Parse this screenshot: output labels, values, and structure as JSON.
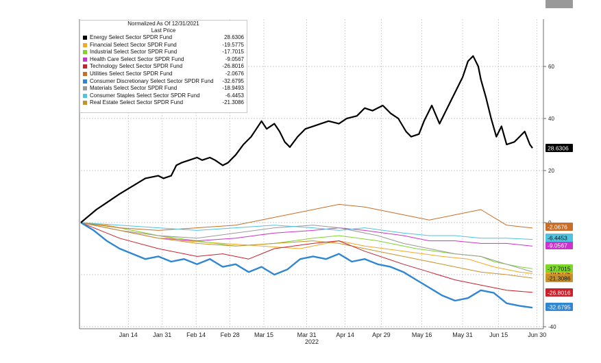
{
  "legend": {
    "title": "Normalized As Of 12/31/2021",
    "subtitle": "Last Price"
  },
  "chart_data": {
    "type": "line",
    "title": "Normalized As Of 12/31/2021",
    "xlabel": "2022",
    "ylabel": "",
    "x_ticks": [
      "Jan 14",
      "Jan 31",
      "Feb 14",
      "Feb 28",
      "Mar 15",
      "Mar 31",
      "Apr 14",
      "Apr 29",
      "May 16",
      "May 31",
      "Jun 15",
      "Jun 30"
    ],
    "y_ticks": [
      "60",
      "40",
      "20",
      "0",
      "-40"
    ],
    "ylim": [
      -40,
      78
    ],
    "grid": true,
    "legend_position": "top-left",
    "series": [
      {
        "name": "Energy Select Sector SPDR Fund",
        "last": "28.6306",
        "color": "#000000",
        "points": [
          [
            0,
            0
          ],
          [
            6,
            5
          ],
          [
            9,
            7
          ],
          [
            12,
            9
          ],
          [
            15,
            11
          ],
          [
            20,
            14
          ],
          [
            25,
            17
          ],
          [
            30,
            18
          ],
          [
            32,
            17
          ],
          [
            35,
            18
          ],
          [
            37,
            22
          ],
          [
            39,
            23
          ],
          [
            42,
            24
          ],
          [
            45,
            25
          ],
          [
            47,
            24
          ],
          [
            50,
            25
          ],
          [
            52,
            24
          ],
          [
            55,
            22
          ],
          [
            57,
            23
          ],
          [
            60,
            26
          ],
          [
            63,
            30
          ],
          [
            66,
            33
          ],
          [
            68,
            36
          ],
          [
            70,
            39
          ],
          [
            72,
            36
          ],
          [
            75,
            38
          ],
          [
            77,
            35
          ],
          [
            79,
            31
          ],
          [
            81,
            29
          ],
          [
            84,
            33
          ],
          [
            87,
            36
          ],
          [
            90,
            37
          ],
          [
            93,
            38
          ],
          [
            96,
            39
          ],
          [
            100,
            38
          ],
          [
            103,
            40
          ],
          [
            107,
            41
          ],
          [
            110,
            44
          ],
          [
            113,
            43
          ],
          [
            117,
            45
          ],
          [
            120,
            42
          ],
          [
            123,
            40
          ],
          [
            126,
            35
          ],
          [
            128,
            33
          ],
          [
            131,
            34
          ],
          [
            133,
            39
          ],
          [
            136,
            45
          ],
          [
            139,
            38
          ],
          [
            142,
            44
          ],
          [
            145,
            50
          ],
          [
            148,
            56
          ],
          [
            150,
            62
          ],
          [
            152,
            64
          ],
          [
            154,
            60
          ],
          [
            155,
            55
          ],
          [
            157,
            48
          ],
          [
            159,
            40
          ],
          [
            161,
            33
          ],
          [
            163,
            37
          ],
          [
            165,
            30
          ],
          [
            168,
            31
          ],
          [
            170,
            33
          ],
          [
            172,
            35
          ],
          [
            174,
            30
          ],
          [
            175,
            28.63
          ]
        ]
      },
      {
        "name": "Financial Select Sector SPDR Fund",
        "last": "-19.5775",
        "color": "#f5a623",
        "points": [
          [
            0,
            0
          ],
          [
            10,
            -1
          ],
          [
            25,
            -4
          ],
          [
            40,
            -7
          ],
          [
            55,
            -8
          ],
          [
            70,
            -9
          ],
          [
            85,
            -10
          ],
          [
            100,
            -7
          ],
          [
            110,
            -9
          ],
          [
            125,
            -11
          ],
          [
            140,
            -13
          ],
          [
            150,
            -14
          ],
          [
            160,
            -17
          ],
          [
            170,
            -19
          ],
          [
            175,
            -19.58
          ]
        ]
      },
      {
        "name": "Industrial Select Sector SPDR Fund",
        "last": "-17.7015",
        "color": "#7fd62a",
        "points": [
          [
            0,
            0
          ],
          [
            15,
            -2
          ],
          [
            30,
            -5
          ],
          [
            45,
            -7
          ],
          [
            60,
            -9
          ],
          [
            75,
            -8
          ],
          [
            90,
            -6
          ],
          [
            100,
            -5
          ],
          [
            115,
            -7
          ],
          [
            130,
            -10
          ],
          [
            145,
            -12
          ],
          [
            155,
            -13
          ],
          [
            160,
            -15
          ],
          [
            170,
            -17
          ],
          [
            175,
            -17.7
          ]
        ]
      },
      {
        "name": "Health Care Select Sector SPDR Fund",
        "last": "-9.0567",
        "color": "#cc33cc",
        "points": [
          [
            0,
            0
          ],
          [
            15,
            -3
          ],
          [
            30,
            -6
          ],
          [
            45,
            -7
          ],
          [
            60,
            -6
          ],
          [
            75,
            -4
          ],
          [
            90,
            -3
          ],
          [
            100,
            -2
          ],
          [
            110,
            -3
          ],
          [
            125,
            -5
          ],
          [
            135,
            -7
          ],
          [
            145,
            -7
          ],
          [
            155,
            -8
          ],
          [
            165,
            -8
          ],
          [
            175,
            -9.06
          ]
        ]
      },
      {
        "name": "Technology Select Sector SPDR Fund",
        "last": "-26.8016",
        "color": "#cc1f2a",
        "points": [
          [
            0,
            0
          ],
          [
            15,
            -6
          ],
          [
            30,
            -10
          ],
          [
            45,
            -13
          ],
          [
            55,
            -12
          ],
          [
            65,
            -14
          ],
          [
            75,
            -10
          ],
          [
            90,
            -8
          ],
          [
            100,
            -7
          ],
          [
            110,
            -11
          ],
          [
            125,
            -16
          ],
          [
            135,
            -19
          ],
          [
            145,
            -22
          ],
          [
            155,
            -24
          ],
          [
            165,
            -26
          ],
          [
            175,
            -26.8
          ]
        ]
      },
      {
        "name": "Utilities Select Sector SPDR Fund",
        "last": "-2.0676",
        "color": "#c86e28",
        "points": [
          [
            0,
            0
          ],
          [
            15,
            -2
          ],
          [
            30,
            -3
          ],
          [
            45,
            -2
          ],
          [
            60,
            -1
          ],
          [
            75,
            2
          ],
          [
            90,
            5
          ],
          [
            100,
            7
          ],
          [
            110,
            6
          ],
          [
            125,
            3
          ],
          [
            135,
            1
          ],
          [
            145,
            3
          ],
          [
            155,
            5
          ],
          [
            160,
            2
          ],
          [
            165,
            -1
          ],
          [
            175,
            -2.07
          ]
        ]
      },
      {
        "name": "Consumer Discretionary Select Sector SPDR Fund",
        "last": "-32.6795",
        "color": "#2f86d3",
        "points": [
          [
            0,
            0
          ],
          [
            5,
            -3
          ],
          [
            10,
            -7
          ],
          [
            15,
            -10
          ],
          [
            20,
            -12
          ],
          [
            25,
            -14
          ],
          [
            30,
            -13
          ],
          [
            35,
            -15
          ],
          [
            40,
            -14
          ],
          [
            45,
            -16
          ],
          [
            50,
            -14
          ],
          [
            55,
            -17
          ],
          [
            60,
            -16
          ],
          [
            65,
            -19
          ],
          [
            70,
            -17
          ],
          [
            75,
            -20
          ],
          [
            80,
            -18
          ],
          [
            85,
            -14
          ],
          [
            90,
            -13
          ],
          [
            95,
            -14
          ],
          [
            100,
            -12
          ],
          [
            105,
            -15
          ],
          [
            110,
            -14
          ],
          [
            115,
            -16
          ],
          [
            120,
            -17
          ],
          [
            125,
            -19
          ],
          [
            130,
            -22
          ],
          [
            135,
            -25
          ],
          [
            140,
            -28
          ],
          [
            145,
            -30
          ],
          [
            150,
            -29
          ],
          [
            155,
            -26
          ],
          [
            160,
            -27
          ],
          [
            165,
            -31
          ],
          [
            170,
            -32
          ],
          [
            175,
            -32.68
          ]
        ]
      },
      {
        "name": "Materials Select Sector SPDR Fund",
        "last": "-18.9493",
        "color": "#999999",
        "points": [
          [
            0,
            0
          ],
          [
            15,
            -3
          ],
          [
            30,
            -5
          ],
          [
            45,
            -6
          ],
          [
            60,
            -4
          ],
          [
            75,
            -2
          ],
          [
            90,
            -1
          ],
          [
            100,
            -2
          ],
          [
            115,
            -5
          ],
          [
            125,
            -8
          ],
          [
            135,
            -10
          ],
          [
            145,
            -12
          ],
          [
            155,
            -13
          ],
          [
            165,
            -16
          ],
          [
            175,
            -18.95
          ]
        ]
      },
      {
        "name": "Consumer Staples Select Sector SPDR Fund",
        "last": "-6.4453",
        "color": "#4fc3e0",
        "points": [
          [
            0,
            0
          ],
          [
            15,
            -1
          ],
          [
            30,
            -2
          ],
          [
            45,
            -3
          ],
          [
            60,
            -2
          ],
          [
            75,
            -1
          ],
          [
            90,
            -2
          ],
          [
            100,
            -3
          ],
          [
            110,
            -2
          ],
          [
            125,
            -4
          ],
          [
            135,
            -5
          ],
          [
            145,
            -5
          ],
          [
            155,
            -6
          ],
          [
            165,
            -6
          ],
          [
            175,
            -6.45
          ]
        ]
      },
      {
        "name": "Real Estate Select Sector SPDR Fund",
        "last": "-21.3086",
        "color": "#c8922a",
        "points": [
          [
            0,
            0
          ],
          [
            15,
            -3
          ],
          [
            30,
            -6
          ],
          [
            45,
            -8
          ],
          [
            60,
            -9
          ],
          [
            75,
            -8
          ],
          [
            90,
            -7
          ],
          [
            100,
            -8
          ],
          [
            110,
            -10
          ],
          [
            125,
            -13
          ],
          [
            135,
            -15
          ],
          [
            145,
            -17
          ],
          [
            155,
            -19
          ],
          [
            165,
            -20
          ],
          [
            175,
            -21.31
          ]
        ]
      }
    ]
  }
}
